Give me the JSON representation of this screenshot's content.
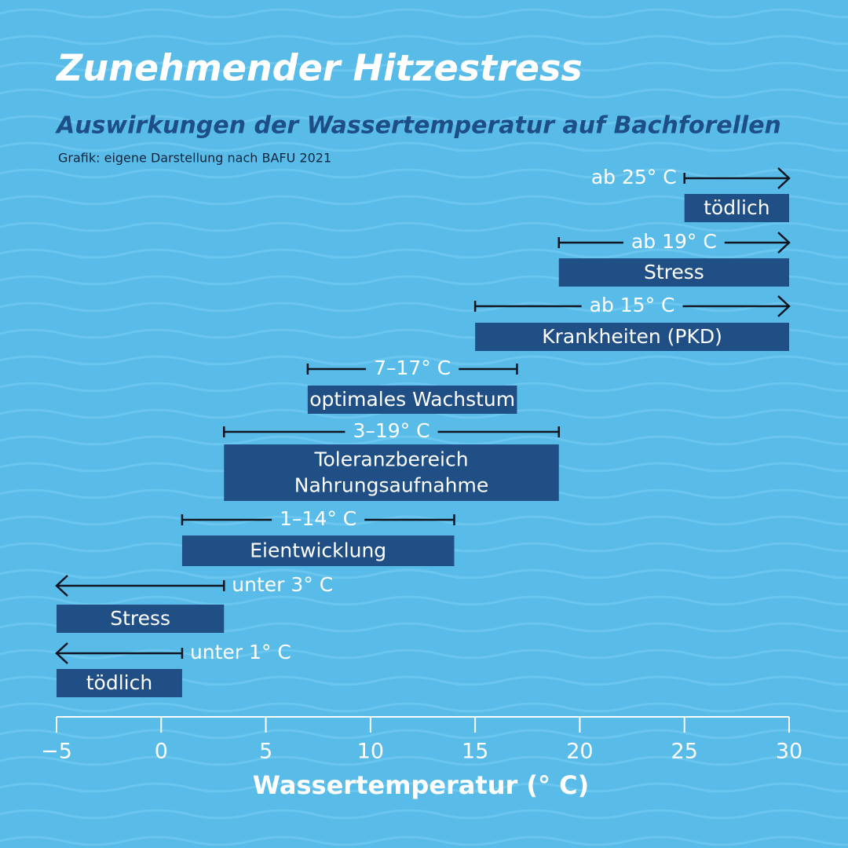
{
  "chart_data": {
    "type": "range_bar",
    "title": "Zunehmender Hitzestress",
    "subtitle": "Auswirkungen der Wassertemperatur auf Bachforellen",
    "source": "Grafik: eigene Darstellung nach BAFU 2021",
    "x_label": "Wassertemperatur (° C)",
    "xlim": [
      -5,
      30
    ],
    "xticks": [
      {
        "value": -5,
        "label": "−5"
      },
      0,
      5,
      10,
      15,
      20,
      25,
      30
    ],
    "color": "#1f4f84",
    "bars": [
      {
        "label": "tödlich",
        "range_label": "ab 25° C",
        "start": 25,
        "end": 30,
        "open": "right"
      },
      {
        "label": "Stress",
        "range_label": "ab 19° C",
        "start": 19,
        "end": 30,
        "open": "right"
      },
      {
        "label": "Krankheiten (PKD)",
        "range_label": "ab 15° C",
        "start": 15,
        "end": 30,
        "open": "right"
      },
      {
        "label": "optimales Wachstum",
        "range_label": "7–17° C",
        "start": 7,
        "end": 17
      },
      {
        "label": "Toleranzbereich\nNahrungsaufnahme",
        "range_label": "3–19° C",
        "start": 3,
        "end": 19
      },
      {
        "label": "Eientwicklung",
        "range_label": "1–14° C",
        "start": 1,
        "end": 14
      },
      {
        "label": "Stress",
        "range_label": "unter 3° C",
        "start": -5,
        "end": 3,
        "open": "left"
      },
      {
        "label": "tödlich",
        "range_label": "unter 1° C",
        "start": -5,
        "end": 1,
        "open": "left"
      }
    ]
  }
}
